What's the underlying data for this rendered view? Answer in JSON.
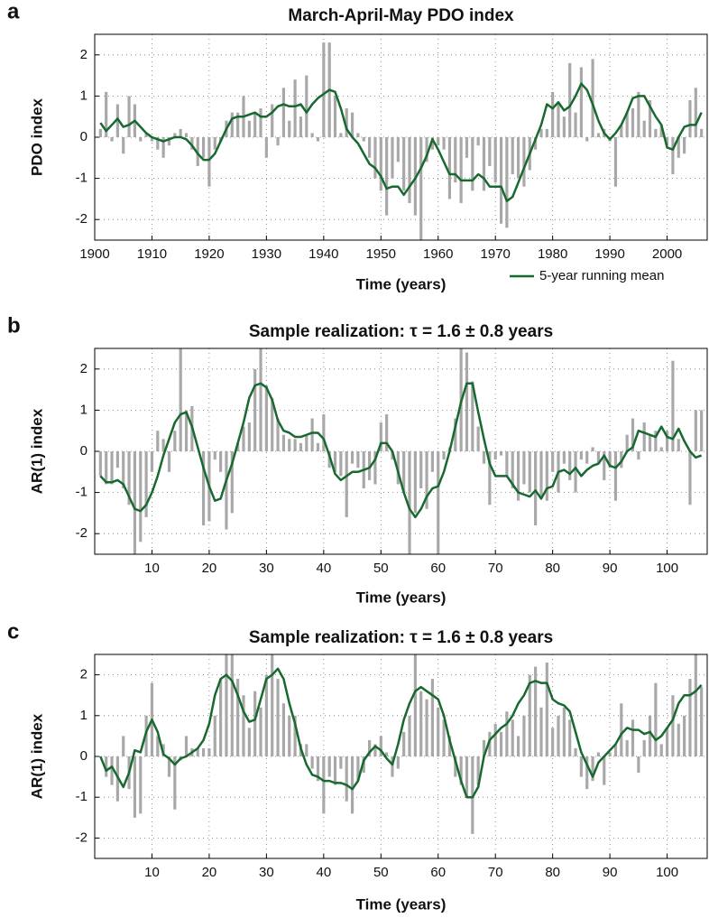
{
  "chart_data": [
    {
      "type": "bar-line",
      "panel_label": "a",
      "title": "March-April-May PDO index",
      "x_label": "Time (years)",
      "y_label": "PDO index",
      "xlim": [
        1900,
        2007
      ],
      "ylim": [
        -2.5,
        2.5
      ],
      "xticks": [
        1900,
        1910,
        1920,
        1930,
        1940,
        1950,
        1960,
        1970,
        1980,
        1990,
        2000
      ],
      "yticks": [
        -2,
        -1,
        0,
        1,
        2
      ],
      "grid": true,
      "legend": "lower right",
      "x": [
        1901,
        1902,
        1903,
        1904,
        1905,
        1906,
        1907,
        1908,
        1909,
        1910,
        1911,
        1912,
        1913,
        1914,
        1915,
        1916,
        1917,
        1918,
        1919,
        1920,
        1921,
        1922,
        1923,
        1924,
        1925,
        1926,
        1927,
        1928,
        1929,
        1930,
        1931,
        1932,
        1933,
        1934,
        1935,
        1936,
        1937,
        1938,
        1939,
        1940,
        1941,
        1942,
        1943,
        1944,
        1945,
        1946,
        1947,
        1948,
        1949,
        1950,
        1951,
        1952,
        1953,
        1954,
        1955,
        1956,
        1957,
        1958,
        1959,
        1960,
        1961,
        1962,
        1963,
        1964,
        1965,
        1966,
        1967,
        1968,
        1969,
        1970,
        1971,
        1972,
        1973,
        1974,
        1975,
        1976,
        1977,
        1978,
        1979,
        1980,
        1981,
        1982,
        1983,
        1984,
        1985,
        1986,
        1987,
        1988,
        1989,
        1990,
        1991,
        1992,
        1993,
        1994,
        1995,
        1996,
        1997,
        1998,
        1999,
        2000,
        2001,
        2002,
        2003,
        2004,
        2005,
        2006
      ],
      "series": [
        {
          "type": "bar",
          "color": "#a8a8a8",
          "values": [
            0.2,
            1.1,
            -0.1,
            0.8,
            -0.4,
            1.0,
            0.8,
            -0.1,
            0.1,
            -0.1,
            -0.3,
            -0.5,
            -0.2,
            0.1,
            0.2,
            0.1,
            -0.3,
            -0.7,
            -0.5,
            -1.2,
            -0.3,
            -0.1,
            0.4,
            0.6,
            0.6,
            1.0,
            0.4,
            0.6,
            0.7,
            -0.5,
            0.8,
            -0.2,
            1.2,
            0.4,
            1.4,
            0.5,
            1.5,
            0.1,
            -0.1,
            2.3,
            2.3,
            1.0,
            0.1,
            0.7,
            0.6,
            0.1,
            -0.1,
            -0.5,
            -1.0,
            -1.3,
            -1.9,
            -1.0,
            -0.6,
            -1.3,
            -1.6,
            -1.9,
            -2.5,
            -0.6,
            -0.3,
            -0.2,
            -0.3,
            -1.5,
            -1.1,
            -1.6,
            -0.5,
            -1.3,
            -0.2,
            -1.3,
            -0.7,
            -1.1,
            -2.1,
            -2.2,
            -0.9,
            -1.0,
            -1.2,
            -0.8,
            -0.3,
            0.2,
            0.2,
            1.1,
            0.8,
            0.5,
            1.8,
            0.6,
            1.7,
            -0.1,
            1.9,
            0.1,
            0.2,
            -0.1,
            -1.2,
            0.3,
            0.6,
            0.7,
            1.1,
            0.4,
            0.9,
            0.2,
            0.3,
            -0.2,
            -0.9,
            -0.5,
            -0.4,
            0.9,
            1.2,
            0.2
          ]
        },
        {
          "type": "line",
          "name": "5-year running mean",
          "color": "#17692f",
          "values": [
            0.35,
            0.15,
            0.3,
            0.45,
            0.25,
            0.3,
            0.4,
            0.25,
            0.1,
            0.0,
            -0.05,
            -0.1,
            -0.05,
            0.0,
            0.0,
            -0.05,
            -0.2,
            -0.4,
            -0.55,
            -0.55,
            -0.4,
            -0.1,
            0.2,
            0.45,
            0.5,
            0.5,
            0.55,
            0.6,
            0.5,
            0.5,
            0.6,
            0.75,
            0.8,
            0.75,
            0.75,
            0.8,
            0.6,
            0.8,
            0.95,
            1.05,
            1.15,
            1.1,
            0.7,
            0.2,
            0.0,
            -0.15,
            -0.4,
            -0.65,
            -0.75,
            -0.95,
            -1.25,
            -1.2,
            -1.2,
            -1.4,
            -1.2,
            -1.0,
            -0.75,
            -0.45,
            -0.05,
            -0.3,
            -0.6,
            -0.9,
            -0.9,
            -1.05,
            -1.05,
            -1.05,
            -0.9,
            -1.0,
            -1.2,
            -1.2,
            -1.2,
            -1.55,
            -1.45,
            -1.1,
            -0.75,
            -0.4,
            -0.05,
            0.3,
            0.8,
            0.7,
            0.85,
            0.65,
            0.75,
            1.0,
            1.3,
            1.15,
            0.8,
            0.4,
            0.1,
            -0.05,
            0.1,
            0.3,
            0.6,
            0.95,
            1.0,
            1.0,
            0.75,
            0.5,
            0.3,
            -0.25,
            -0.3,
            0.0,
            0.25,
            0.3,
            0.3,
            0.6
          ]
        }
      ]
    },
    {
      "type": "bar-line",
      "panel_label": "b",
      "title": "Sample realization: τ = 1.6 ± 0.8 years",
      "x_label": "Time (years)",
      "y_label": "AR(1) index",
      "xlim": [
        0,
        107
      ],
      "ylim": [
        -2.5,
        2.5
      ],
      "xticks": [
        10,
        20,
        30,
        40,
        50,
        60,
        70,
        80,
        90,
        100
      ],
      "yticks": [
        -2,
        -1,
        0,
        1,
        2
      ],
      "grid": true,
      "x": [
        1,
        2,
        3,
        4,
        5,
        6,
        7,
        8,
        9,
        10,
        11,
        12,
        13,
        14,
        15,
        16,
        17,
        18,
        19,
        20,
        21,
        22,
        23,
        24,
        25,
        26,
        27,
        28,
        29,
        30,
        31,
        32,
        33,
        34,
        35,
        36,
        37,
        38,
        39,
        40,
        41,
        42,
        43,
        44,
        45,
        46,
        47,
        48,
        49,
        50,
        51,
        52,
        53,
        54,
        55,
        56,
        57,
        58,
        59,
        60,
        61,
        62,
        63,
        64,
        65,
        66,
        67,
        68,
        69,
        70,
        71,
        72,
        73,
        74,
        75,
        76,
        77,
        78,
        79,
        80,
        81,
        82,
        83,
        84,
        85,
        86,
        87,
        88,
        89,
        90,
        91,
        92,
        93,
        94,
        95,
        96,
        97,
        98,
        99,
        100,
        101,
        102,
        103,
        104,
        105,
        106
      ],
      "series": [
        {
          "type": "bar",
          "color": "#a8a8a8",
          "values": [
            -0.6,
            -0.8,
            -0.8,
            -0.4,
            -0.9,
            -1.3,
            -2.5,
            -2.2,
            -1.6,
            -0.5,
            0.5,
            0.3,
            -0.5,
            0.5,
            2.5,
            1.0,
            1.1,
            0.0,
            -1.8,
            -1.7,
            -0.2,
            -0.5,
            -1.9,
            -1.5,
            0.2,
            0.6,
            0.7,
            2.0,
            2.5,
            1.6,
            1.3,
            0.8,
            0.4,
            0.3,
            0.3,
            0.2,
            0.4,
            0.8,
            0.2,
            0.9,
            -0.4,
            -0.5,
            -0.6,
            -1.6,
            -0.3,
            -0.4,
            -0.9,
            -0.7,
            -0.8,
            0.7,
            0.9,
            -0.2,
            -0.8,
            -1.0,
            -2.5,
            -1.5,
            -0.9,
            -1.4,
            -0.5,
            -2.5,
            -0.2,
            0.1,
            0.8,
            2.5,
            2.4,
            1.7,
            0.6,
            -0.3,
            -1.3,
            -0.2,
            -0.1,
            -0.6,
            -0.9,
            -1.2,
            -0.8,
            -1.0,
            -1.8,
            -1.1,
            -1.2,
            -0.5,
            -1.0,
            -0.3,
            -0.7,
            -1.0,
            -0.2,
            -0.3,
            0.1,
            -0.3,
            -0.7,
            -0.4,
            -1.2,
            -0.4,
            0.4,
            0.8,
            -0.2,
            0.7,
            0.4,
            0.5,
            0.1,
            0.5,
            2.2,
            0.3,
            0.0,
            -1.3,
            1.0,
            1.0
          ]
        },
        {
          "type": "line",
          "color": "#17692f",
          "values": [
            -0.6,
            -0.75,
            -0.75,
            -0.7,
            -0.8,
            -1.1,
            -1.4,
            -1.45,
            -1.3,
            -1.0,
            -0.6,
            -0.1,
            0.3,
            0.7,
            0.9,
            0.95,
            0.6,
            0.1,
            -0.4,
            -0.85,
            -1.2,
            -1.15,
            -0.7,
            -0.3,
            0.2,
            0.7,
            1.3,
            1.6,
            1.65,
            1.55,
            1.25,
            0.75,
            0.5,
            0.45,
            0.35,
            0.35,
            0.4,
            0.45,
            0.45,
            0.3,
            -0.1,
            -0.55,
            -0.7,
            -0.6,
            -0.5,
            -0.5,
            -0.45,
            -0.4,
            -0.2,
            0.2,
            0.2,
            0.0,
            -0.5,
            -1.0,
            -1.4,
            -1.6,
            -1.4,
            -1.1,
            -0.9,
            -0.85,
            -0.5,
            0.0,
            0.6,
            1.2,
            1.65,
            1.65,
            0.95,
            0.3,
            -0.3,
            -0.6,
            -0.6,
            -0.6,
            -0.8,
            -1.0,
            -1.05,
            -1.1,
            -0.95,
            -1.15,
            -0.9,
            -0.85,
            -0.5,
            -0.45,
            -0.55,
            -0.4,
            -0.6,
            -0.45,
            -0.35,
            -0.3,
            -0.1,
            -0.35,
            -0.4,
            -0.25,
            0.0,
            0.1,
            0.5,
            0.45,
            0.4,
            0.35,
            0.6,
            0.35,
            0.3,
            0.55,
            0.25,
            0.0,
            -0.15,
            -0.1
          ]
        }
      ]
    },
    {
      "type": "bar-line",
      "panel_label": "c",
      "title": "Sample realization: τ = 1.6 ± 0.8 years",
      "x_label": "Time (years)",
      "y_label": "AR(1) index",
      "xlim": [
        0,
        107
      ],
      "ylim": [
        -2.5,
        2.5
      ],
      "xticks": [
        10,
        20,
        30,
        40,
        50,
        60,
        70,
        80,
        90,
        100
      ],
      "yticks": [
        -2,
        -1,
        0,
        1,
        2
      ],
      "grid": true,
      "x": [
        1,
        2,
        3,
        4,
        5,
        6,
        7,
        8,
        9,
        10,
        11,
        12,
        13,
        14,
        15,
        16,
        17,
        18,
        19,
        20,
        21,
        22,
        23,
        24,
        25,
        26,
        27,
        28,
        29,
        30,
        31,
        32,
        33,
        34,
        35,
        36,
        37,
        38,
        39,
        40,
        41,
        42,
        43,
        44,
        45,
        46,
        47,
        48,
        49,
        50,
        51,
        52,
        53,
        54,
        55,
        56,
        57,
        58,
        59,
        60,
        61,
        62,
        63,
        64,
        65,
        66,
        67,
        68,
        69,
        70,
        71,
        72,
        73,
        74,
        75,
        76,
        77,
        78,
        79,
        80,
        81,
        82,
        83,
        84,
        85,
        86,
        87,
        88,
        89,
        90,
        91,
        92,
        93,
        94,
        95,
        96,
        97,
        98,
        99,
        100,
        101,
        102,
        103,
        104,
        105,
        106
      ],
      "series": [
        {
          "type": "bar",
          "color": "#a8a8a8",
          "values": [
            0.0,
            -0.5,
            -0.7,
            -1.1,
            0.5,
            -0.8,
            -1.5,
            -1.4,
            1.0,
            1.8,
            0.5,
            0.3,
            -0.5,
            -1.3,
            -0.1,
            0.5,
            0.2,
            0.2,
            0.2,
            0.2,
            1.0,
            1.9,
            2.5,
            2.5,
            1.9,
            1.5,
            0.7,
            1.6,
            1.2,
            2.0,
            2.5,
            1.9,
            1.3,
            1.0,
            1.0,
            0.3,
            0.3,
            -0.3,
            -0.6,
            -1.4,
            -0.5,
            -0.7,
            -0.3,
            -1.1,
            -1.4,
            -0.6,
            -0.4,
            0.4,
            0.3,
            0.5,
            0.1,
            -0.5,
            -0.3,
            0.6,
            1.0,
            2.5,
            1.6,
            1.4,
            1.9,
            1.2,
            0.9,
            0.5,
            -0.5,
            -0.7,
            -1.0,
            -1.9,
            -0.7,
            0.4,
            0.6,
            0.8,
            0.6,
            1.1,
            0.9,
            0.5,
            1.0,
            2.0,
            2.2,
            1.2,
            2.3,
            0.7,
            1.0,
            1.2,
            0.9,
            0.2,
            -0.5,
            -0.8,
            -0.6,
            0.1,
            -0.7,
            0.1,
            0.3,
            1.3,
            0.4,
            0.9,
            -0.4,
            0.4,
            1.0,
            1.8,
            0.3,
            0.7,
            1.5,
            0.8,
            1.0,
            1.9,
            2.5,
            1.7
          ]
        },
        {
          "type": "line",
          "color": "#17692f",
          "values": [
            0.0,
            -0.35,
            -0.25,
            -0.5,
            -0.75,
            -0.4,
            0.15,
            0.1,
            0.6,
            0.9,
            0.6,
            0.05,
            -0.05,
            -0.2,
            -0.05,
            0.0,
            0.1,
            0.2,
            0.4,
            0.8,
            1.5,
            1.9,
            2.0,
            1.85,
            1.5,
            1.1,
            0.85,
            0.9,
            1.4,
            1.9,
            2.0,
            2.15,
            1.9,
            1.3,
            0.8,
            0.2,
            -0.2,
            -0.45,
            -0.5,
            -0.6,
            -0.6,
            -0.65,
            -0.65,
            -0.7,
            -0.8,
            -0.6,
            -0.1,
            0.1,
            0.25,
            0.15,
            -0.05,
            -0.2,
            0.3,
            0.9,
            1.3,
            1.6,
            1.7,
            1.6,
            1.5,
            1.4,
            1.0,
            0.4,
            -0.1,
            -0.6,
            -1.0,
            -1.0,
            -0.75,
            0.0,
            0.4,
            0.55,
            0.7,
            0.8,
            1.0,
            1.3,
            1.5,
            1.8,
            1.85,
            1.8,
            1.8,
            1.4,
            1.3,
            1.25,
            1.1,
            0.6,
            0.1,
            -0.2,
            -0.5,
            -0.15,
            0.0,
            0.15,
            0.3,
            0.55,
            0.7,
            0.65,
            0.65,
            0.55,
            0.6,
            0.4,
            0.5,
            0.7,
            0.9,
            1.3,
            1.5,
            1.5,
            1.6,
            1.75
          ]
        }
      ]
    }
  ]
}
